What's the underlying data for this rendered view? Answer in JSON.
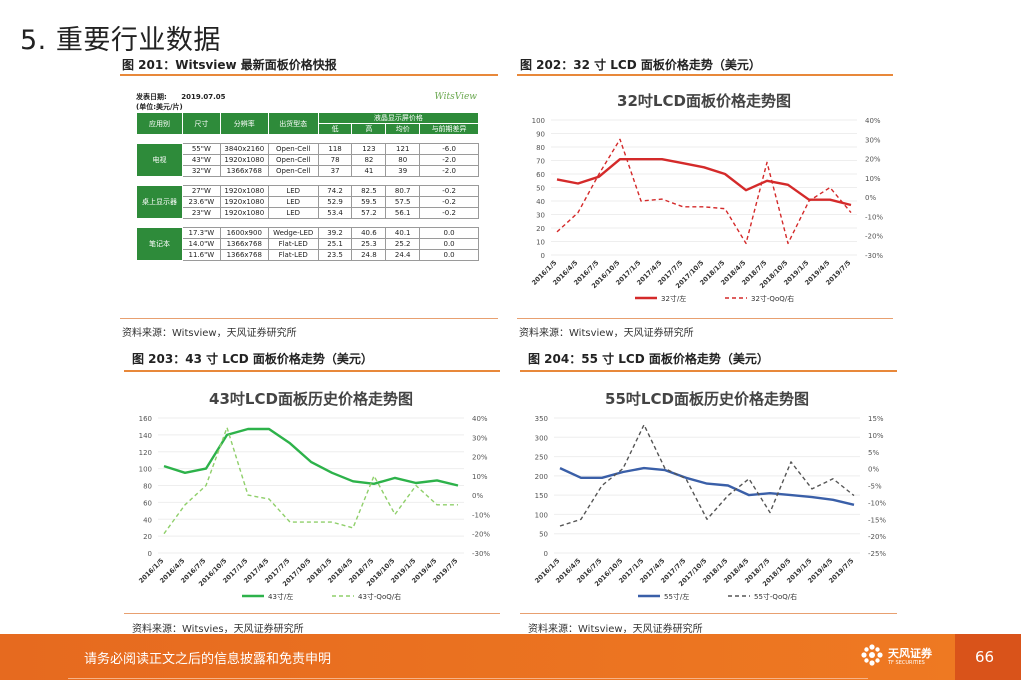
{
  "page_title": "5. 重要行业数据",
  "panels": {
    "p201": {
      "heading": "图 201：Witsview 最新面板价格快报",
      "source": "资料来源：Witsview，天风证券研究所"
    },
    "p202": {
      "heading": "图 202：32 寸 LCD 面板价格走势（美元）",
      "source": "资料来源：Witsview，天风证券研究所"
    },
    "p203": {
      "heading": "图 203：43 寸 LCD 面板价格走势（美元）",
      "source": "资料来源：Witsvies，天风证券研究所"
    },
    "p204": {
      "heading": "图 204：55 寸 LCD 面板价格走势（美元）",
      "source": "资料来源：Witsview，天风证券研究所"
    }
  },
  "price_table": {
    "date_label": "发表日期:",
    "date_value": "2019.07.05",
    "unit": "(单位:美元/片)",
    "logo": "WitsView",
    "headers": [
      "应用别",
      "尺寸",
      "分辨率",
      "出货型态",
      "液晶显示屏价格"
    ],
    "sub_headers": [
      "低",
      "高",
      "均价",
      "与前期差异"
    ],
    "groups": [
      {
        "name": "电视",
        "rows": [
          [
            "55\"W",
            "3840x2160",
            "Open-Cell",
            "118",
            "123",
            "121",
            "-6.0"
          ],
          [
            "43\"W",
            "1920x1080",
            "Open-Cell",
            "78",
            "82",
            "80",
            "-2.0"
          ],
          [
            "32\"W",
            "1366x768",
            "Open-Cell",
            "37",
            "41",
            "39",
            "-2.0"
          ]
        ]
      },
      {
        "name": "桌上显示器",
        "rows": [
          [
            "27\"W",
            "1920x1080",
            "LED",
            "74.2",
            "82.5",
            "80.7",
            "-0.2"
          ],
          [
            "23.6\"W",
            "1920x1080",
            "LED",
            "52.9",
            "59.5",
            "57.5",
            "-0.2"
          ],
          [
            "23\"W",
            "1920x1080",
            "LED",
            "53.4",
            "57.2",
            "56.1",
            "-0.2"
          ]
        ]
      },
      {
        "name": "笔记本",
        "rows": [
          [
            "17.3\"W",
            "1600x900",
            "Wedge-LED",
            "39.2",
            "40.6",
            "40.1",
            "0.0"
          ],
          [
            "14.0\"W",
            "1366x768",
            "Flat-LED",
            "25.1",
            "25.3",
            "25.2",
            "0.0"
          ],
          [
            "11.6\"W",
            "1366x768",
            "Flat-LED",
            "23.5",
            "24.8",
            "24.4",
            "0.0"
          ]
        ]
      }
    ]
  },
  "chart_data": [
    {
      "type": "line",
      "title": "32吋LCD面板价格走势图",
      "x": [
        "2016/1/5",
        "2016/4/5",
        "2016/7/5",
        "2016/10/5",
        "2017/1/5",
        "2017/4/5",
        "2017/7/5",
        "2017/10/5",
        "2018/1/5",
        "2018/4/5",
        "2018/7/5",
        "2018/10/5",
        "2019/1/5",
        "2019/4/5",
        "2019/7/5"
      ],
      "ylim_left": [
        0,
        100
      ],
      "yticks_left": [
        0,
        10,
        20,
        30,
        40,
        50,
        60,
        70,
        80,
        90,
        100
      ],
      "ylim_right": [
        -30,
        40
      ],
      "yticks_right": [
        "-30%",
        "-20%",
        "-10%",
        "0%",
        "10%",
        "20%",
        "30%",
        "40%"
      ],
      "series": [
        {
          "name": "32寸/左",
          "axis": "left",
          "style": "solid",
          "color": "#d42a2a",
          "values": [
            56,
            53,
            58,
            71,
            71,
            71,
            68,
            65,
            60,
            48,
            55,
            52,
            41,
            41,
            37
          ]
        },
        {
          "name": "32寸-QoQ/右",
          "axis": "right",
          "style": "dashed",
          "color": "#d42a2a",
          "values": [
            -18,
            -8,
            12,
            30,
            -2,
            -1,
            -5,
            -5,
            -6,
            -24,
            18,
            -24,
            -2,
            5,
            -8
          ]
        }
      ],
      "legend": "bottom"
    },
    {
      "type": "line",
      "title": "43吋LCD面板历史价格走势图",
      "x": [
        "2016/1/5",
        "2016/4/5",
        "2016/7/5",
        "2016/10/5",
        "2017/1/5",
        "2017/4/5",
        "2017/7/5",
        "2017/10/5",
        "2018/1/5",
        "2018/4/5",
        "2018/7/5",
        "2018/10/5",
        "2019/1/5",
        "2019/4/5",
        "2019/7/5"
      ],
      "ylim_left": [
        0,
        160
      ],
      "yticks_left": [
        0,
        20,
        40,
        60,
        80,
        100,
        120,
        140,
        160
      ],
      "ylim_right": [
        -30,
        40
      ],
      "yticks_right": [
        "-30%",
        "-20%",
        "-10%",
        "0%",
        "10%",
        "20%",
        "30%",
        "40%"
      ],
      "series": [
        {
          "name": "43寸/左",
          "axis": "left",
          "style": "solid",
          "color": "#2db24a",
          "values": [
            103,
            95,
            100,
            140,
            147,
            147,
            130,
            108,
            95,
            85,
            82,
            89,
            83,
            86,
            80
          ]
        },
        {
          "name": "43寸-QoQ/右",
          "axis": "right",
          "style": "dashed",
          "color": "#8fcf6a",
          "values": [
            -20,
            -5,
            5,
            35,
            0,
            -2,
            -14,
            -14,
            -14,
            -17,
            10,
            -10,
            5,
            -5,
            -5
          ]
        }
      ],
      "legend": "bottom"
    },
    {
      "type": "line",
      "title": "55吋LCD面板历史价格走势图",
      "x": [
        "2016/1/5",
        "2016/4/5",
        "2016/7/5",
        "2016/10/5",
        "2017/1/5",
        "2017/4/5",
        "2017/7/5",
        "2017/10/5",
        "2018/1/5",
        "2018/4/5",
        "2018/7/5",
        "2018/10/5",
        "2019/1/5",
        "2019/4/5",
        "2019/7/5"
      ],
      "ylim_left": [
        0,
        350
      ],
      "yticks_left": [
        0,
        50,
        100,
        150,
        200,
        250,
        300,
        350
      ],
      "ylim_right": [
        -25,
        15
      ],
      "yticks_right": [
        "-25%",
        "-20%",
        "-15%",
        "-10%",
        "-5%",
        "0%",
        "5%",
        "10%",
        "15%"
      ],
      "series": [
        {
          "name": "55寸/左",
          "axis": "left",
          "style": "solid",
          "color": "#3a5fa8",
          "values": [
            220,
            195,
            195,
            210,
            220,
            215,
            195,
            180,
            175,
            150,
            155,
            150,
            145,
            138,
            125
          ]
        },
        {
          "name": "55寸-QoQ/右",
          "axis": "right",
          "style": "dashed",
          "color": "#555555",
          "values": [
            -17,
            -15,
            -5,
            0,
            13,
            0,
            -3,
            -15,
            -8,
            -3,
            -13,
            2,
            -6,
            -3,
            -8
          ]
        }
      ],
      "legend": "bottom"
    }
  ],
  "footer": {
    "disclaimer": "请务必阅读正文之后的信息披露和免责申明",
    "brand": "天风证券",
    "brand_sub": "TF SECURITIES",
    "page_number": "66"
  }
}
